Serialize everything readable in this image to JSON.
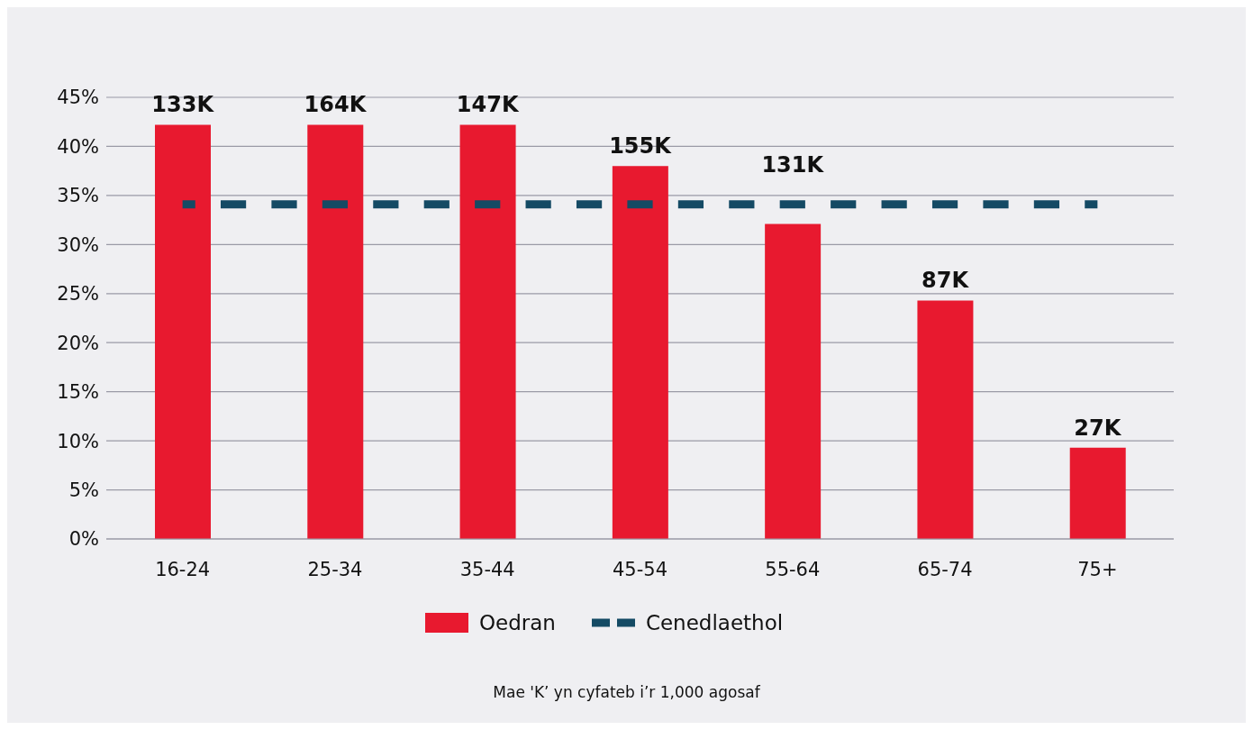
{
  "chart_data": {
    "type": "bar",
    "categories": [
      "16-24",
      "25-34",
      "35-44",
      "45-54",
      "55-64",
      "65-74",
      "75+"
    ],
    "series": [
      {
        "name": "Oedran",
        "color": "#e8192f",
        "values": [
          42.2,
          42.2,
          42.2,
          38,
          32.1,
          24.3,
          9.3
        ]
      },
      {
        "name": "Cenedlaethol",
        "type": "line",
        "color": "#144a64",
        "line_style": "dashed",
        "marker": "none",
        "values": [
          34.1,
          34.1,
          34.1,
          34.1,
          34.1,
          34.1,
          34.1
        ]
      }
    ],
    "ylim": [
      0,
      45
    ],
    "yticks": [
      {
        "value": 0,
        "label": "0%"
      },
      {
        "value": 5,
        "label": "5%"
      },
      {
        "value": 10,
        "label": "10%"
      },
      {
        "value": 15,
        "label": "15%"
      },
      {
        "value": 20,
        "label": "20%"
      },
      {
        "value": 25,
        "label": "25%"
      },
      {
        "value": 30,
        "label": "30%"
      },
      {
        "value": 35,
        "label": "35%"
      },
      {
        "value": 40,
        "label": "40%"
      },
      {
        "value": 45,
        "label": "45%"
      }
    ],
    "grid": "y",
    "legend": "bottom",
    "annotations": [
      {
        "text": "133K",
        "x": "16-24",
        "y": 42.2
      },
      {
        "text": "164K",
        "x": "25-34",
        "y": 42.2
      },
      {
        "text": "147K",
        "x": "35-44",
        "y": 42.2
      },
      {
        "text": "155K",
        "x": "45-54",
        "y": 38
      },
      {
        "text": "131K",
        "x": "55-64",
        "y": 32.1
      },
      {
        "text": "87K",
        "x": "65-74",
        "y": 24.3
      },
      {
        "text": "27K",
        "x": "75+",
        "y": 9.3
      },
      "Mae 'K’ yn cyfateb i’r 1,000 agosaf"
    ]
  }
}
